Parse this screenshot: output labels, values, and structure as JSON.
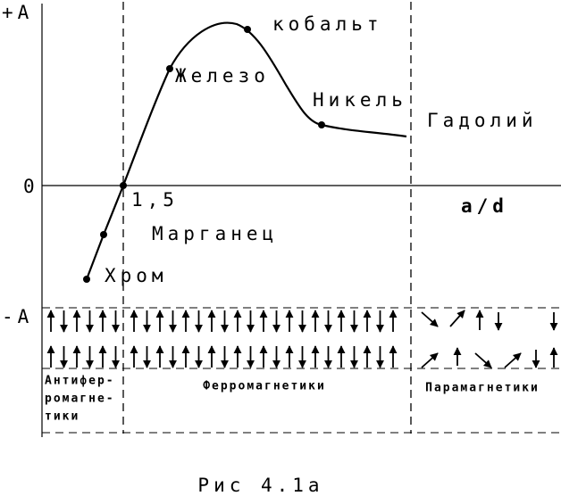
{
  "axes": {
    "plus_a": "+A",
    "zero": "0",
    "minus_a": "-A",
    "x_label": "a/d",
    "x_mark": "1,5"
  },
  "elements": {
    "cobalt": "кобальт",
    "iron": "Железо",
    "nickel": "Никель",
    "gadolinium": "Гадолий",
    "manganese": "Марганец",
    "chromium": "Хром"
  },
  "regions": {
    "antiferro": [
      "Антифер-",
      "ромагне-",
      "тики"
    ],
    "ferro": "Ферромагнетики",
    "para": "Парамагнетики"
  },
  "caption": "Рис 4.1а"
}
